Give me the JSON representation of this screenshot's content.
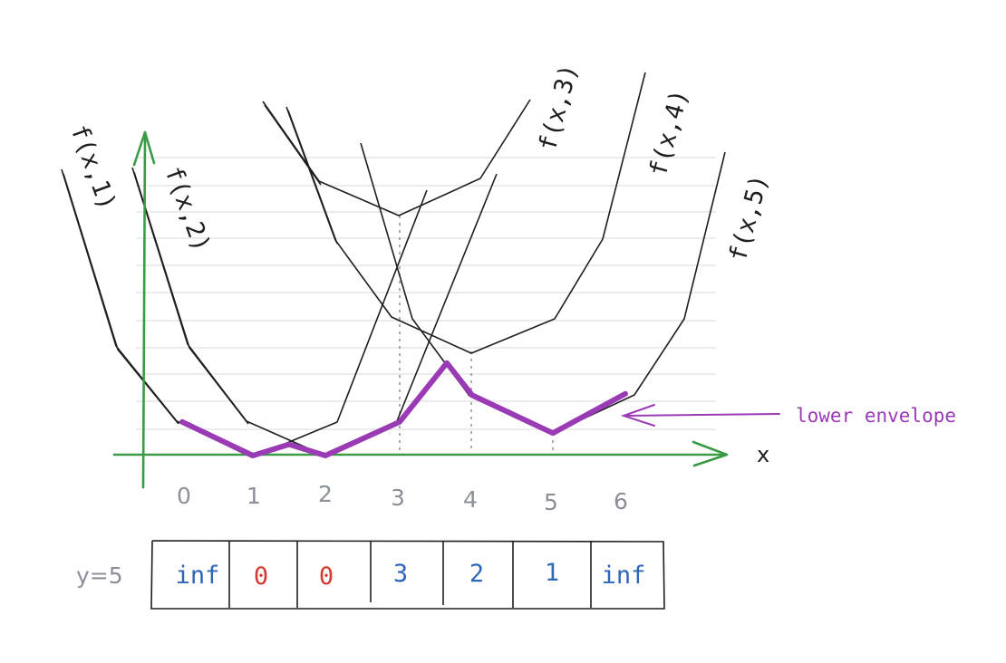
{
  "colors": {
    "axis": "#3a9a45",
    "curve": "#1e1e1e",
    "envelope": "#9a3bb5",
    "grid": "#e6e6e6",
    "tick": "#8a8f98",
    "inf_value": "#2e66b8",
    "zero_value": "#d23a33",
    "cell_border": "#1e1e1e"
  },
  "axis": {
    "x_label": "x",
    "x_ticks": [
      "0",
      "1",
      "2",
      "3",
      "4",
      "5",
      "6"
    ]
  },
  "curves": [
    {
      "label": "f(x,1)"
    },
    {
      "label": "f(x,2)"
    },
    {
      "label": "f(x,3)"
    },
    {
      "label": "f(x,4)"
    },
    {
      "label": "f(x,5)"
    }
  ],
  "envelope": {
    "label": "lower envelope",
    "points": [
      [
        0,
        1.2
      ],
      [
        1,
        0
      ],
      [
        1.5,
        0.4
      ],
      [
        2,
        0
      ],
      [
        3,
        1.2
      ],
      [
        3.65,
        3.3
      ],
      [
        4,
        2.15
      ],
      [
        5,
        0.8
      ],
      [
        6,
        2.2
      ]
    ]
  },
  "table": {
    "row_label": "y=5",
    "cells": [
      {
        "value": "inf",
        "color": "#2e66b8"
      },
      {
        "value": "0",
        "color": "#d23a33"
      },
      {
        "value": "0",
        "color": "#d23a33"
      },
      {
        "value": "3",
        "color": "#2e66b8"
      },
      {
        "value": "2",
        "color": "#2e66b8"
      },
      {
        "value": "1",
        "color": "#2e66b8"
      },
      {
        "value": "inf",
        "color": "#2e66b8"
      }
    ]
  }
}
